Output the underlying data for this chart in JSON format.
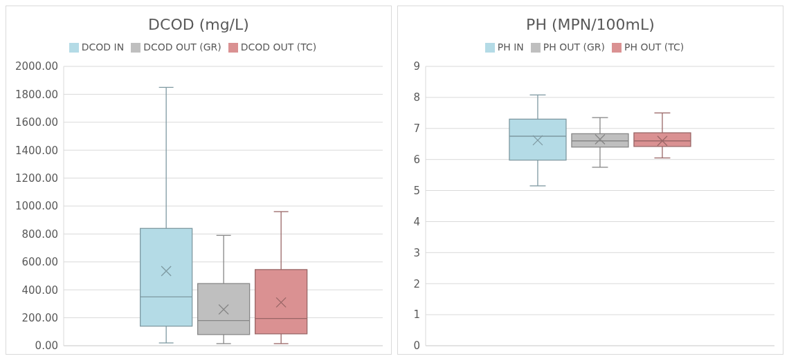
{
  "chart_data": [
    {
      "type": "box",
      "title": "DCOD (mg/L)",
      "categories": [
        null
      ],
      "legend": "top",
      "grid": "y",
      "ylim": [
        0,
        2000
      ],
      "yticks": [
        {
          "value": 0,
          "label": "0.00"
        },
        {
          "value": 200,
          "label": "200.00"
        },
        {
          "value": 400,
          "label": "400.00"
        },
        {
          "value": 600,
          "label": "600.00"
        },
        {
          "value": 800,
          "label": "800.00"
        },
        {
          "value": 1000,
          "label": "1000.00"
        },
        {
          "value": 1200,
          "label": "1200.00"
        },
        {
          "value": 1400,
          "label": "1400.00"
        },
        {
          "value": 1600,
          "label": "1600.00"
        },
        {
          "value": 1800,
          "label": "1800.00"
        },
        {
          "value": 2000,
          "label": "2000.00"
        }
      ],
      "series": [
        {
          "name": "DCOD IN",
          "color": "#b4dbe6",
          "boxes": [
            {
              "low": 20,
              "q1": 140,
              "median": 350,
              "q3": 840,
              "high": 1850,
              "mean": 535
            }
          ]
        },
        {
          "name": "DCOD OUT (GR)",
          "color": "#bfbfbf",
          "boxes": [
            {
              "low": 15,
              "q1": 80,
              "median": 180,
              "q3": 445,
              "high": 790,
              "mean": 260
            }
          ]
        },
        {
          "name": "DCOD OUT (TC)",
          "color": "#da9192",
          "boxes": [
            {
              "low": 15,
              "q1": 85,
              "median": 195,
              "q3": 545,
              "high": 960,
              "mean": 310
            }
          ]
        }
      ]
    },
    {
      "type": "box",
      "title": "PH (MPN/100mL)",
      "categories": [
        null
      ],
      "legend": "top",
      "grid": "y",
      "ylim": [
        0,
        9
      ],
      "yticks": [
        0,
        1,
        2,
        3,
        4,
        5,
        6,
        7,
        8,
        9
      ],
      "series": [
        {
          "name": "PH IN",
          "color": "#b4dbe6",
          "boxes": [
            {
              "low": 5.15,
              "q1": 5.98,
              "median": 6.75,
              "q3": 7.3,
              "high": 8.08,
              "mean": 6.62
            }
          ]
        },
        {
          "name": "PH OUT (GR)",
          "color": "#bfbfbf",
          "boxes": [
            {
              "low": 5.75,
              "q1": 6.4,
              "median": 6.6,
              "q3": 6.83,
              "high": 7.35,
              "mean": 6.65
            }
          ]
        },
        {
          "name": "PH OUT (TC)",
          "color": "#da9192",
          "boxes": [
            {
              "low": 6.05,
              "q1": 6.42,
              "median": 6.6,
              "q3": 6.86,
              "high": 7.5,
              "mean": 6.6
            }
          ]
        }
      ]
    }
  ]
}
